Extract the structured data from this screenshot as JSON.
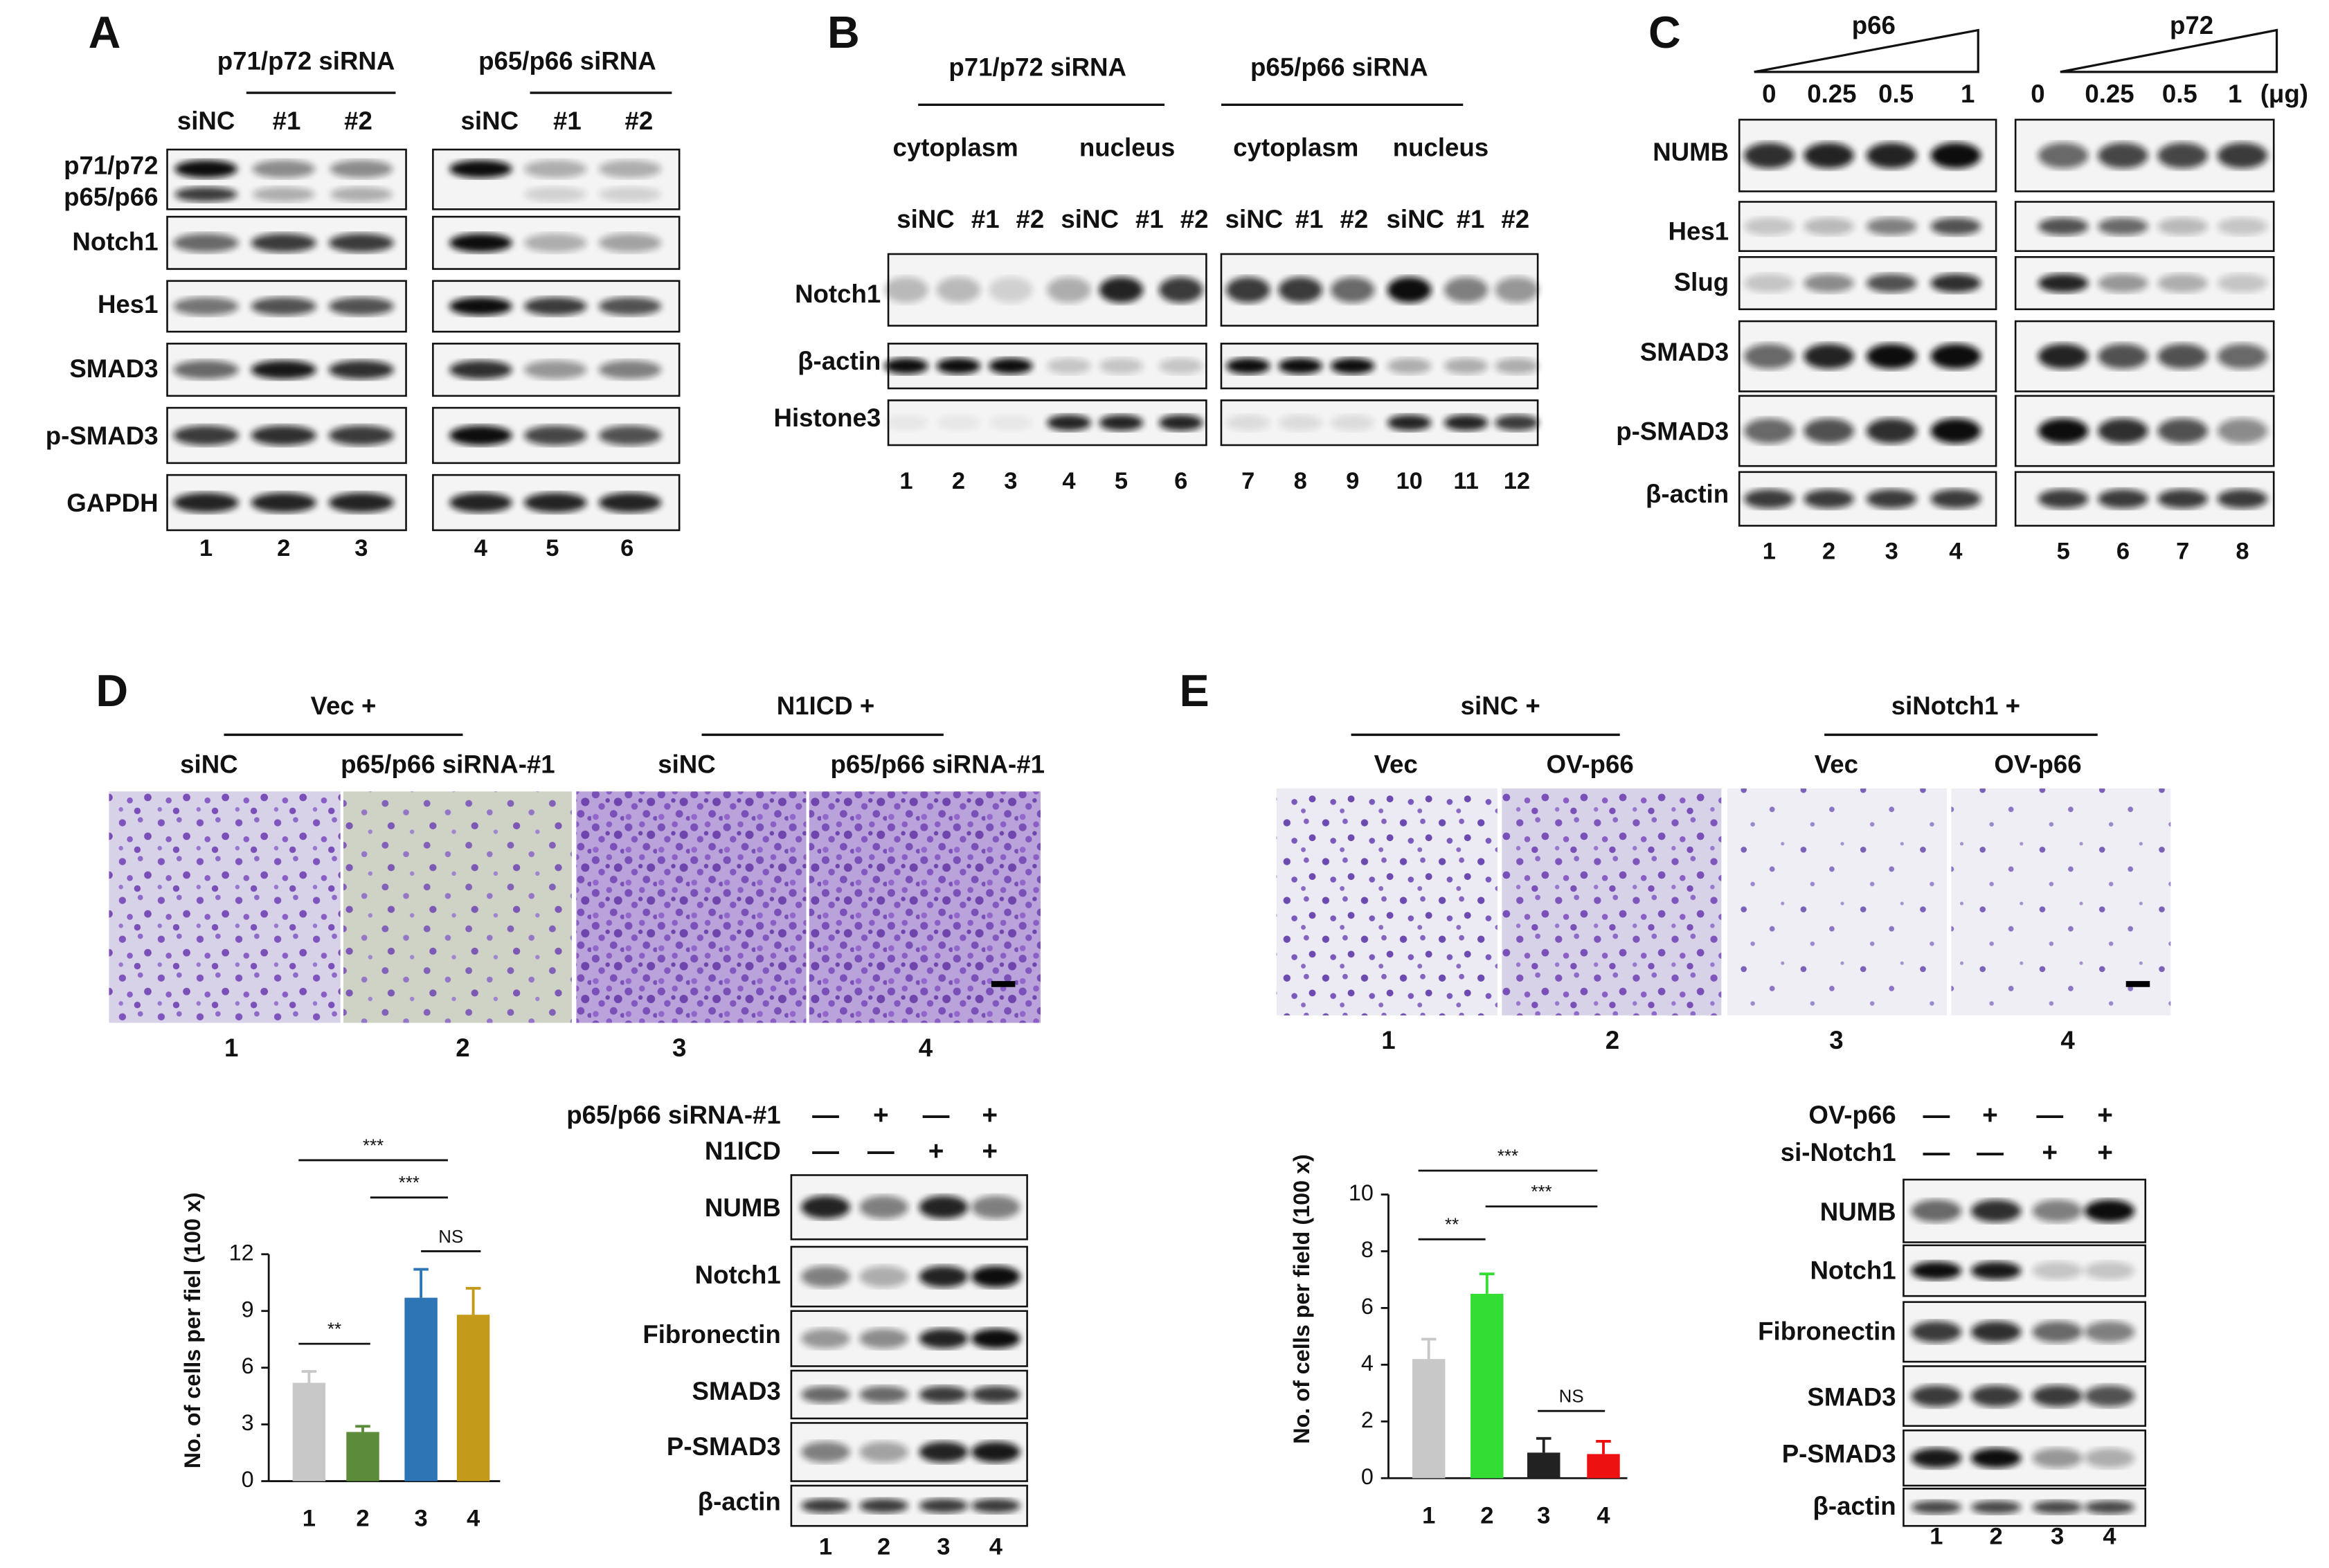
{
  "panel_a": {
    "label": "A",
    "groups": [
      "p71/p72 siRNA",
      "p65/p66 siRNA"
    ],
    "lanes": [
      "siNC",
      "#1",
      "#2",
      "siNC",
      "#1",
      "#2"
    ],
    "rows": [
      "p71/p72",
      "p65/p66",
      "Notch1",
      "Hes1",
      "SMAD3",
      "p-SMAD3",
      "GAPDH"
    ],
    "lane_numbers": [
      "1",
      "2",
      "3",
      "4",
      "5",
      "6"
    ]
  },
  "panel_b": {
    "label": "B",
    "groups": [
      "p71/p72 siRNA",
      "p65/p66 siRNA"
    ],
    "compartments": [
      "cytoplasm",
      "nucleus",
      "cytoplasm",
      "nucleus"
    ],
    "lanes": [
      "siNC",
      "#1",
      "#2",
      "siNC",
      "#1",
      "#2",
      "siNC",
      "#1",
      "#2",
      "siNC",
      "#1",
      "#2"
    ],
    "rows": [
      "Notch1",
      "β-actin",
      "Histone3"
    ],
    "lane_numbers": [
      "1",
      "2",
      "3",
      "4",
      "5",
      "6",
      "7",
      "8",
      "9",
      "10",
      "11",
      "12"
    ]
  },
  "panel_c": {
    "label": "C",
    "proteins": [
      "p66",
      "p72"
    ],
    "doses": [
      "0",
      "0.25",
      "0.5",
      "1",
      "0",
      "0.25",
      "0.5",
      "1"
    ],
    "dose_unit": "(μg)",
    "rows": [
      "NUMB",
      "Hes1",
      "Slug",
      "SMAD3",
      "p-SMAD3",
      "β-actin"
    ],
    "lane_numbers": [
      "1",
      "2",
      "3",
      "4",
      "5",
      "6",
      "7",
      "8"
    ]
  },
  "panel_d": {
    "label": "D",
    "groups": [
      "Vec +",
      "N1ICD +"
    ],
    "conditions": [
      "siNC",
      "p65/p66 siRNA-#1",
      "siNC",
      "p65/p66 siRNA-#1"
    ],
    "image_numbers": [
      "1",
      "2",
      "3",
      "4"
    ],
    "chart": {
      "type": "bar",
      "y_label": "No. of cells per fiel (100 x)",
      "categories": [
        "1",
        "2",
        "3",
        "4"
      ],
      "values": [
        5.2,
        2.6,
        9.7,
        8.8
      ],
      "errors": [
        0.6,
        0.3,
        1.5,
        1.4
      ],
      "colors": [
        "#c8c8c8",
        "#5b8c3a",
        "#2e75b6",
        "#c49a1a"
      ],
      "ylim": [
        0,
        12
      ],
      "yticks": [
        0,
        3,
        6,
        9,
        12
      ],
      "significance": [
        "**",
        "***",
        "***",
        "NS"
      ]
    },
    "blot": {
      "treatments": [
        {
          "name": "p65/p66 siRNA-#1",
          "signs": [
            "—",
            "+",
            "—",
            "+"
          ]
        },
        {
          "name": "N1ICD",
          "signs": [
            "—",
            "—",
            "+",
            "+"
          ]
        }
      ],
      "rows": [
        "NUMB",
        "Notch1",
        "Fibronectin",
        "SMAD3",
        "P-SMAD3",
        "β-actin"
      ],
      "lane_numbers": [
        "1",
        "2",
        "3",
        "4"
      ]
    }
  },
  "panel_e": {
    "label": "E",
    "groups": [
      "siNC +",
      "siNotch1 +"
    ],
    "conditions": [
      "Vec",
      "OV-p66",
      "Vec",
      "OV-p66"
    ],
    "image_numbers": [
      "1",
      "2",
      "3",
      "4"
    ],
    "chart": {
      "type": "bar",
      "y_label": "No. of cells per field (100 x)",
      "categories": [
        "1",
        "2",
        "3",
        "4"
      ],
      "values": [
        4.2,
        6.5,
        0.9,
        0.85
      ],
      "errors": [
        0.7,
        0.7,
        0.5,
        0.45
      ],
      "colors": [
        "#c8c8c8",
        "#33dd33",
        "#222222",
        "#ee1111"
      ],
      "ylim": [
        0,
        10
      ],
      "yticks": [
        0,
        2,
        4,
        6,
        8,
        10
      ],
      "significance": [
        "**",
        "***",
        "***",
        "NS"
      ]
    },
    "blot": {
      "treatments": [
        {
          "name": "OV-p66",
          "signs": [
            "—",
            "+",
            "—",
            "+"
          ]
        },
        {
          "name": "si-Notch1",
          "signs": [
            "—",
            "—",
            "+",
            "+"
          ]
        }
      ],
      "rows": [
        "NUMB",
        "Notch1",
        "Fibronectin",
        "SMAD3",
        "P-SMAD3",
        "β-actin"
      ],
      "lane_numbers": [
        "1",
        "2",
        "3",
        "4"
      ]
    }
  }
}
